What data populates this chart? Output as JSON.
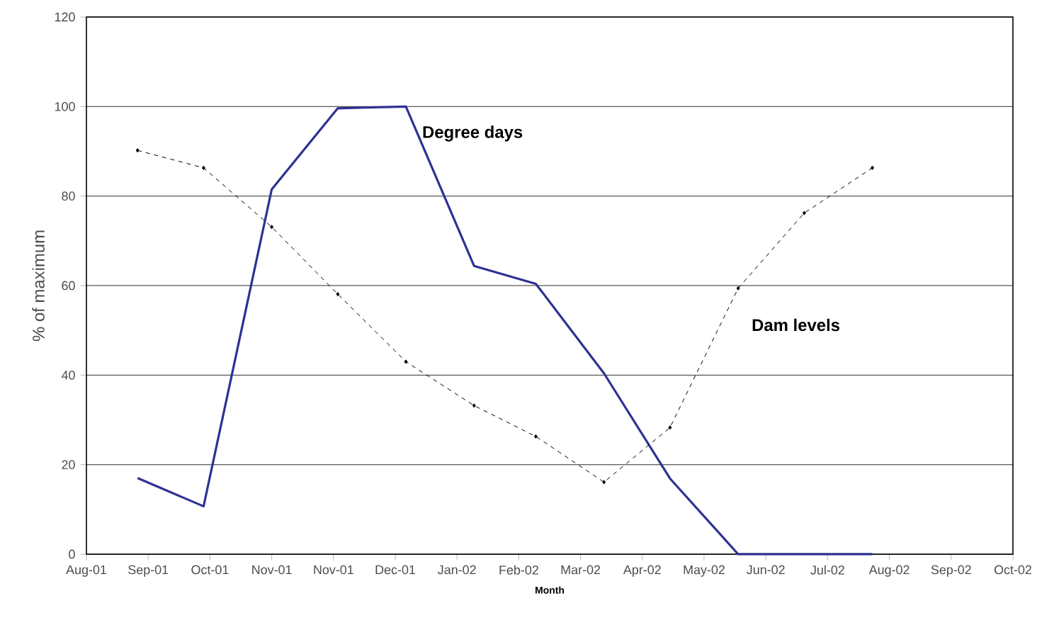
{
  "chart_data": {
    "type": "line",
    "xlabel": "Month",
    "ylabel": "% of maximum",
    "x": [
      "2001-08-30",
      "2001-09-30",
      "2001-11-01",
      "2001-12-02",
      "2002-01-03",
      "2002-02-04",
      "2002-03-05",
      "2002-04-06",
      "2002-05-07",
      "2002-06-08",
      "2002-07-09",
      "2002-08-10"
    ],
    "series": [
      {
        "name": "Degree days",
        "color": "#2e3192",
        "line_style": "solid",
        "marker": "none",
        "values": [
          17,
          10.7,
          81.5,
          99.6,
          100,
          64.4,
          60.4,
          40.4,
          16.9,
          0,
          0,
          0
        ]
      },
      {
        "name": "Dam levels",
        "color": "#000000",
        "line_style": "dashed",
        "marker": "diamond",
        "values": [
          90.2,
          86.3,
          73.1,
          58.1,
          43,
          33.2,
          26.3,
          16.1,
          28.3,
          59.4,
          76.2,
          86.3
        ]
      }
    ],
    "xlim": [
      "2001-08-06",
      "2002-10-15"
    ],
    "xticks": [
      {
        "value": "2001-08-06",
        "label": "Aug-01"
      },
      {
        "value": "2001-09-04",
        "label": "Sep-01"
      },
      {
        "value": "2001-10-03",
        "label": "Oct-01"
      },
      {
        "value": "2001-11-01",
        "label": "Nov-01"
      },
      {
        "value": "2001-11-30",
        "label": "Nov-01"
      },
      {
        "value": "2001-12-29",
        "label": "Dec-01"
      },
      {
        "value": "2002-01-27",
        "label": "Jan-02"
      },
      {
        "value": "2002-02-25",
        "label": "Feb-02"
      },
      {
        "value": "2002-03-26",
        "label": "Mar-02"
      },
      {
        "value": "2002-04-24",
        "label": "Apr-02"
      },
      {
        "value": "2002-05-23",
        "label": "May-02"
      },
      {
        "value": "2002-06-21",
        "label": "Jun-02"
      },
      {
        "value": "2002-07-20",
        "label": "Jul-02"
      },
      {
        "value": "2002-08-18",
        "label": "Aug-02"
      },
      {
        "value": "2002-09-16",
        "label": "Sep-02"
      },
      {
        "value": "2002-10-15",
        "label": "Oct-02"
      }
    ],
    "ylim": [
      0,
      120
    ],
    "yticks": [
      0,
      20,
      40,
      60,
      80,
      100,
      120
    ],
    "grid": "y",
    "legend": false
  }
}
